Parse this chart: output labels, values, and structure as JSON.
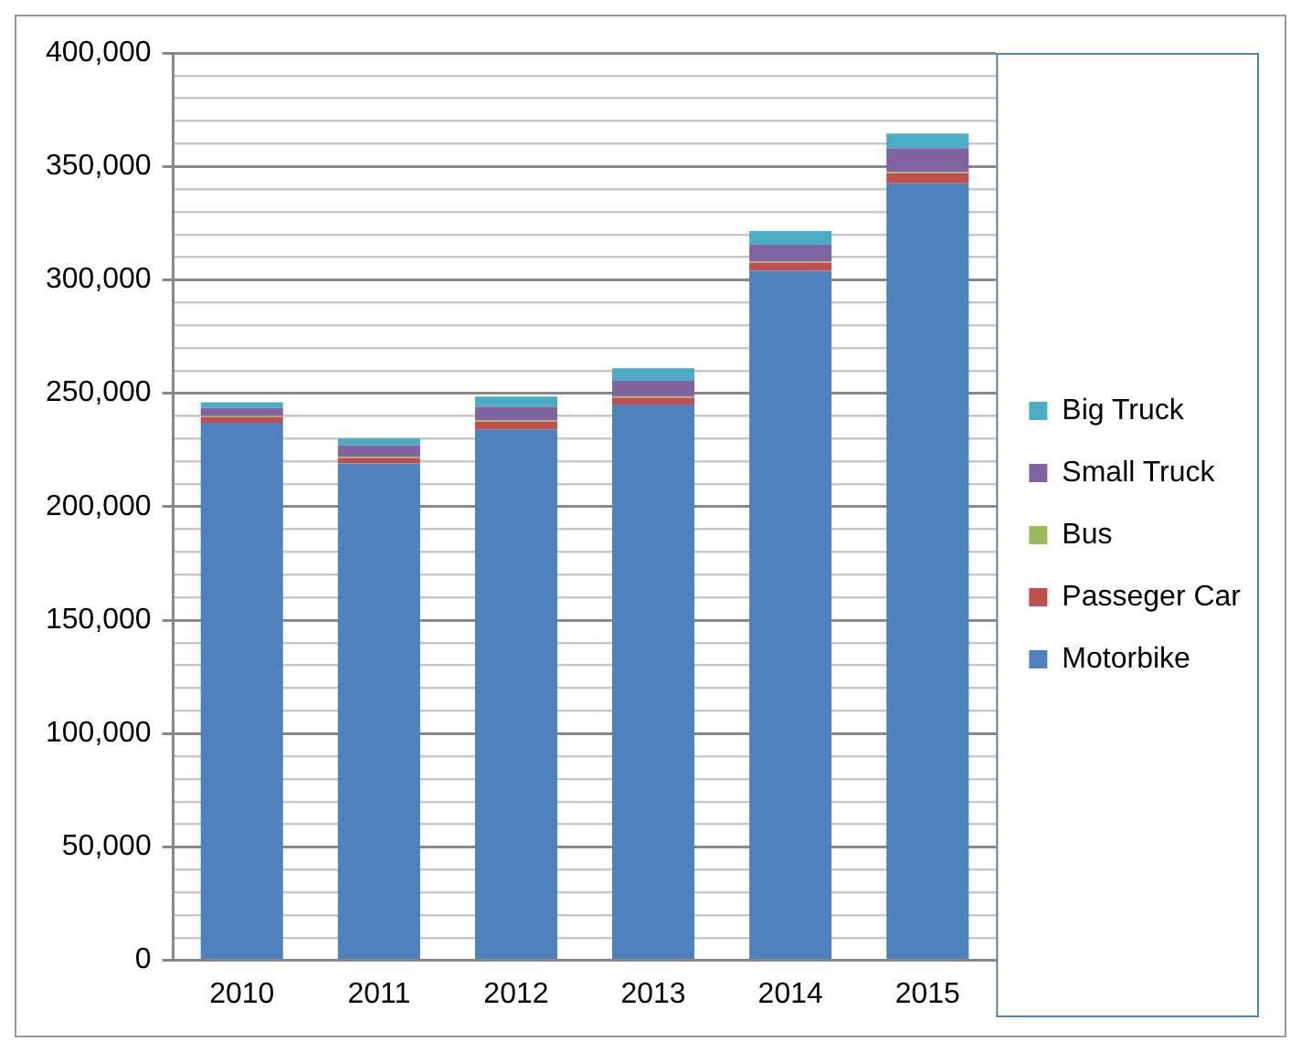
{
  "chart_data": {
    "type": "bar",
    "stacked": true,
    "categories": [
      "2010",
      "2011",
      "2012",
      "2013",
      "2014",
      "2015"
    ],
    "series": [
      {
        "name": "Motorbike",
        "color": "#4f81bd",
        "values": [
          237000,
          219000,
          234000,
          245000,
          304000,
          342500
        ]
      },
      {
        "name": "Passeger Car",
        "color": "#c0504d",
        "values": [
          2500,
          2500,
          3500,
          3000,
          3500,
          4500
        ]
      },
      {
        "name": "Bus",
        "color": "#9bbb59",
        "values": [
          500,
          500,
          500,
          500,
          500,
          500
        ]
      },
      {
        "name": "Small Truck",
        "color": "#8064a2",
        "values": [
          3500,
          5000,
          6000,
          7000,
          7500,
          10500
        ]
      },
      {
        "name": "Big Truck",
        "color": "#4bacc6",
        "values": [
          2500,
          3000,
          4500,
          5500,
          6000,
          6500
        ]
      }
    ],
    "ylim": [
      0,
      400000
    ],
    "yticks": [
      {
        "value": 0,
        "label": "0"
      },
      {
        "value": 10000,
        "label": null
      },
      {
        "value": 20000,
        "label": null
      },
      {
        "value": 30000,
        "label": null
      },
      {
        "value": 40000,
        "label": null
      },
      {
        "value": 50000,
        "label": "50,000"
      },
      {
        "value": 60000,
        "label": null
      },
      {
        "value": 70000,
        "label": null
      },
      {
        "value": 80000,
        "label": null
      },
      {
        "value": 90000,
        "label": null
      },
      {
        "value": 100000,
        "label": "100,000"
      },
      {
        "value": 110000,
        "label": null
      },
      {
        "value": 120000,
        "label": null
      },
      {
        "value": 130000,
        "label": null
      },
      {
        "value": 140000,
        "label": null
      },
      {
        "value": 150000,
        "label": "150,000"
      },
      {
        "value": 160000,
        "label": null
      },
      {
        "value": 170000,
        "label": null
      },
      {
        "value": 180000,
        "label": null
      },
      {
        "value": 190000,
        "label": null
      },
      {
        "value": 200000,
        "label": "200,000"
      },
      {
        "value": 210000,
        "label": null
      },
      {
        "value": 220000,
        "label": null
      },
      {
        "value": 230000,
        "label": null
      },
      {
        "value": 240000,
        "label": null
      },
      {
        "value": 250000,
        "label": "250,000"
      },
      {
        "value": 260000,
        "label": null
      },
      {
        "value": 270000,
        "label": null
      },
      {
        "value": 280000,
        "label": null
      },
      {
        "value": 290000,
        "label": null
      },
      {
        "value": 300000,
        "label": "300,000"
      },
      {
        "value": 310000,
        "label": null
      },
      {
        "value": 320000,
        "label": null
      },
      {
        "value": 330000,
        "label": null
      },
      {
        "value": 340000,
        "label": null
      },
      {
        "value": 350000,
        "label": "350,000"
      },
      {
        "value": 360000,
        "label": null
      },
      {
        "value": 370000,
        "label": null
      },
      {
        "value": 380000,
        "label": null
      },
      {
        "value": 390000,
        "label": null
      },
      {
        "value": 400000,
        "label": "400,000"
      }
    ],
    "grid": "y",
    "legend": "right"
  }
}
